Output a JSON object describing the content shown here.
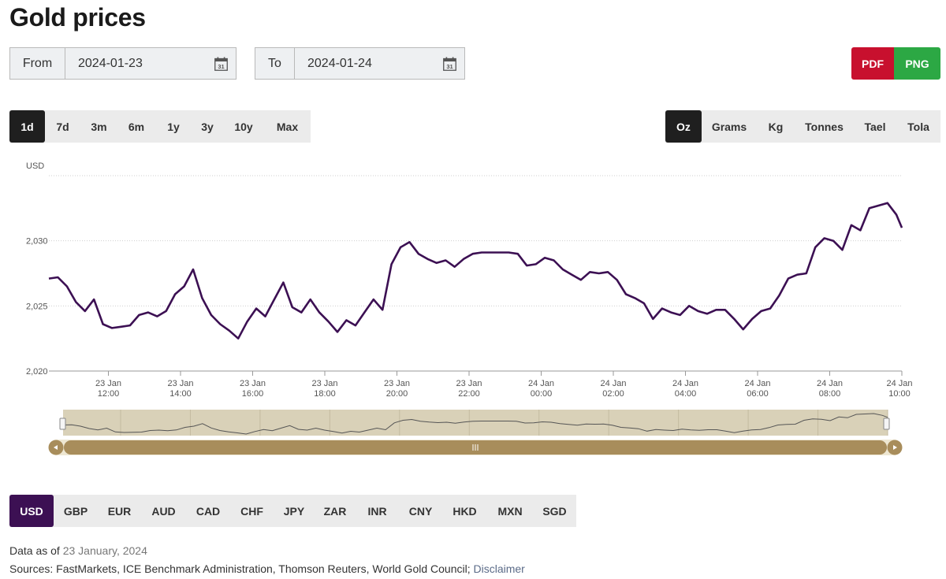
{
  "page_title": "Gold prices",
  "from": {
    "label": "From",
    "value": "2024-01-23"
  },
  "to": {
    "label": "To",
    "value": "2024-01-24"
  },
  "export": {
    "pdf": "PDF",
    "png": "PNG",
    "pdf_color": "#c8102e",
    "png_color": "#2ca844"
  },
  "ranges": [
    "1d",
    "7d",
    "3m",
    "6m",
    "1y",
    "3y",
    "10y",
    "Max"
  ],
  "active_range": "1d",
  "units": [
    "Oz",
    "Grams",
    "Kg",
    "Tonnes",
    "Tael",
    "Tola"
  ],
  "active_unit": "Oz",
  "currencies": [
    "USD",
    "GBP",
    "EUR",
    "AUD",
    "CAD",
    "CHF",
    "JPY",
    "ZAR",
    "INR",
    "CNY",
    "HKD",
    "MXN",
    "SGD"
  ],
  "active_currency": "USD",
  "chart_data": {
    "type": "line",
    "ylabel": "USD",
    "ylim": [
      2020,
      2035
    ],
    "yticks": [
      "2,020",
      "2,025",
      "2,030"
    ],
    "ytick_values": [
      2020,
      2025,
      2030
    ],
    "xticks": [
      {
        "date": "23 Jan",
        "time": "12:00"
      },
      {
        "date": "23 Jan",
        "time": "14:00"
      },
      {
        "date": "23 Jan",
        "time": "16:00"
      },
      {
        "date": "23 Jan",
        "time": "18:00"
      },
      {
        "date": "23 Jan",
        "time": "20:00"
      },
      {
        "date": "23 Jan",
        "time": "22:00"
      },
      {
        "date": "24 Jan",
        "time": "00:00"
      },
      {
        "date": "24 Jan",
        "time": "02:00"
      },
      {
        "date": "24 Jan",
        "time": "04:00"
      },
      {
        "date": "24 Jan",
        "time": "06:00"
      },
      {
        "date": "24 Jan",
        "time": "08:00"
      },
      {
        "date": "24 Jan",
        "time": "10:00"
      }
    ],
    "xtick_hours": [
      12,
      14,
      16,
      18,
      20,
      22,
      24,
      26,
      28,
      30,
      32,
      34
    ],
    "xrange_hours": [
      10.35,
      34.0
    ],
    "series": [
      {
        "color": "#3c1053",
        "x": [
          10.35,
          10.6,
          10.85,
          11.1,
          11.35,
          11.6,
          11.85,
          12.1,
          12.35,
          12.6,
          12.85,
          13.1,
          13.35,
          13.6,
          13.85,
          14.1,
          14.35,
          14.6,
          14.85,
          15.1,
          15.35,
          15.6,
          15.85,
          16.1,
          16.35,
          16.6,
          16.85,
          17.1,
          17.35,
          17.6,
          17.85,
          18.1,
          18.35,
          18.6,
          18.85,
          19.1,
          19.35,
          19.6,
          19.85,
          20.1,
          20.35,
          20.6,
          20.85,
          21.1,
          21.35,
          21.6,
          21.85,
          22.1,
          22.35,
          22.6,
          22.85,
          23.1,
          23.35,
          23.6,
          23.85,
          24.1,
          24.35,
          24.6,
          24.85,
          25.1,
          25.35,
          25.6,
          25.85,
          26.1,
          26.35,
          26.6,
          26.85,
          27.1,
          27.35,
          27.6,
          27.85,
          28.1,
          28.35,
          28.6,
          28.85,
          29.1,
          29.35,
          29.6,
          29.85,
          30.1,
          30.35,
          30.6,
          30.85,
          31.1,
          31.35,
          31.6,
          31.85,
          32.1,
          32.35,
          32.6,
          32.85,
          33.1,
          33.35,
          33.6,
          33.85,
          34.0
        ],
        "y": [
          2027.1,
          2027.2,
          2026.5,
          2025.3,
          2024.6,
          2025.5,
          2023.6,
          2023.3,
          2023.4,
          2023.5,
          2024.3,
          2024.5,
          2024.2,
          2024.6,
          2025.9,
          2026.5,
          2027.8,
          2025.6,
          2024.3,
          2023.6,
          2023.1,
          2022.5,
          2023.8,
          2024.8,
          2024.2,
          2025.5,
          2026.8,
          2024.9,
          2024.5,
          2025.5,
          2024.5,
          2023.8,
          2023.0,
          2023.9,
          2023.5,
          2024.5,
          2025.5,
          2024.7,
          2028.2,
          2029.5,
          2029.9,
          2029.0,
          2028.6,
          2028.3,
          2028.5,
          2028.0,
          2028.6,
          2029.0,
          2029.1,
          2029.1,
          2029.1,
          2029.1,
          2029.0,
          2028.1,
          2028.2,
          2028.7,
          2028.5,
          2027.8,
          2027.4,
          2027.0,
          2027.6,
          2027.5,
          2027.6,
          2027.0,
          2025.9,
          2025.6,
          2025.2,
          2024.0,
          2024.8,
          2024.5,
          2024.3,
          2025.0,
          2024.6,
          2024.4,
          2024.7,
          2024.7,
          2024.0,
          2023.2,
          2024.0,
          2024.6,
          2024.8,
          2025.8,
          2027.1,
          2027.4,
          2027.5,
          2029.5,
          2030.2,
          2030.0,
          2029.3,
          2031.2,
          2030.8,
          2032.5,
          2032.7,
          2032.9,
          2032.0,
          2031.0
        ]
      }
    ]
  },
  "footer": {
    "data_as_of_label": "Data as of",
    "data_as_of_date": "23 January, 2024",
    "sources": "Sources: FastMarkets, ICE Benchmark Administration, Thomson Reuters, World Gold Council;",
    "disclaimer": "Disclaimer"
  }
}
